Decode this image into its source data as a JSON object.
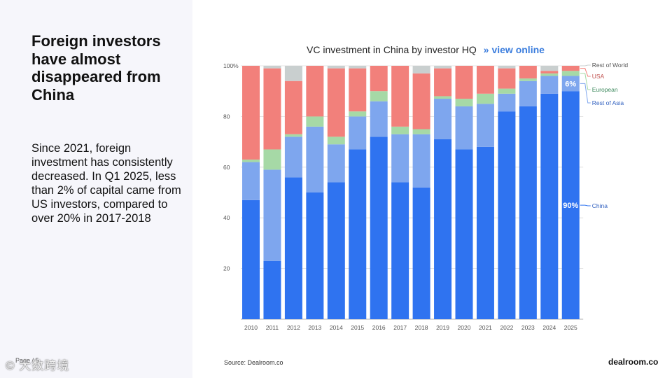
{
  "headline": "Foreign investors have almost disappeared from China",
  "body": "Since 2021, foreign investment has consistently decreased. In Q1 2025, less than 2% of capital came from US investors, compared to over 20% in 2017-2018",
  "page_label": "Page / 5",
  "watermark": "© 大数跨境",
  "chart_title": {
    "text": "VC investment in China by investor HQ",
    "chevron": "»",
    "link": "view online"
  },
  "source": "Source:  Dealroom.co",
  "brand": "dealroom.co",
  "colors": {
    "China": "#2f73f0",
    "Rest of Asia": "#7ea6ee",
    "European": "#a6d9a6",
    "USA": "#f2807b",
    "Rest of World": "#c9cfcf"
  },
  "chart_data": {
    "type": "bar",
    "stacked": true,
    "title": "VC investment in China by investor HQ",
    "categories": [
      "2010",
      "2011",
      "2012",
      "2013",
      "2014",
      "2015",
      "2016",
      "2017",
      "2018",
      "2019",
      "2020",
      "2021",
      "2022",
      "2023",
      "2024",
      "2025"
    ],
    "ylim": [
      0,
      100
    ],
    "yticks": [
      {
        "value": 20,
        "label": "20"
      },
      {
        "value": 40,
        "label": "40"
      },
      {
        "value": 60,
        "label": "60"
      },
      {
        "value": 80,
        "label": "80"
      },
      {
        "value": 100,
        "label": "100%"
      }
    ],
    "grid": true,
    "series": [
      {
        "name": "China",
        "values": [
          47,
          23,
          56,
          50,
          54,
          67,
          72,
          54,
          52,
          71,
          67,
          68,
          82,
          84,
          89,
          90
        ]
      },
      {
        "name": "Rest of Asia",
        "values": [
          15,
          36,
          16,
          26,
          15,
          13,
          14,
          19,
          21,
          16,
          17,
          17,
          7,
          10,
          7,
          6
        ]
      },
      {
        "name": "European",
        "values": [
          1,
          8,
          1,
          4,
          3,
          2,
          4,
          3,
          2,
          1,
          3,
          4,
          2,
          1,
          1,
          2
        ]
      },
      {
        "name": "USA",
        "values": [
          37,
          32,
          21,
          20,
          27,
          17,
          10,
          24,
          22,
          11,
          13,
          11,
          8,
          5,
          1,
          2
        ]
      },
      {
        "name": "Rest of World",
        "values": [
          0,
          1,
          6,
          0,
          1,
          1,
          0,
          0,
          3,
          1,
          0,
          0,
          1,
          0,
          2,
          0
        ]
      }
    ],
    "legend_placement": "right",
    "data_labels": [
      {
        "category": "2025",
        "series": "China",
        "text": "90%"
      },
      {
        "category": "2025",
        "series": "Rest of Asia",
        "text": "6%"
      }
    ]
  }
}
